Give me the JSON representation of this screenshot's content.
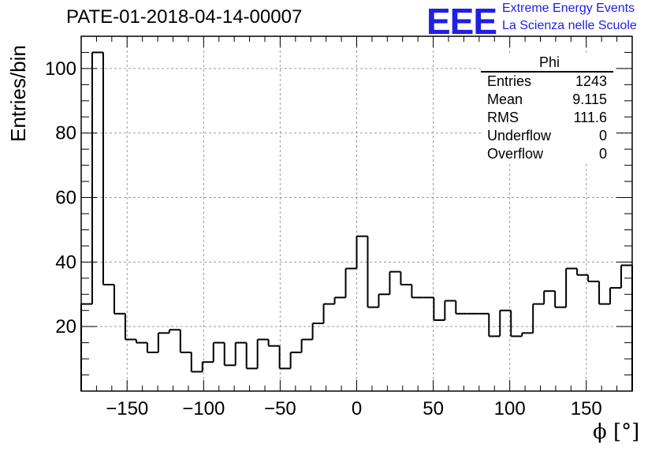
{
  "header": {
    "title": "PATE-01-2018-04-14-00007",
    "logo_text": "EEE",
    "logo_line1": "Extreme Energy Events",
    "logo_line2": "La Scienza nelle Scuole",
    "logo_color": "#1f1fe6"
  },
  "stats_box": {
    "name": "Phi",
    "rows": [
      {
        "label": "Entries",
        "value": "1243"
      },
      {
        "label": "Mean",
        "value": "9.115"
      },
      {
        "label": "RMS",
        "value": "111.6"
      },
      {
        "label": "Underflow",
        "value": "0"
      },
      {
        "label": "Overflow",
        "value": "0"
      }
    ]
  },
  "chart_data": {
    "type": "histogram",
    "title": "PATE-01-2018-04-14-00007",
    "xlabel": "ϕ [°]",
    "ylabel": "Entries/bin",
    "xlim": [
      -180,
      180
    ],
    "ylim": [
      0,
      110
    ],
    "bin_width": 7.2,
    "values": [
      27,
      105,
      33,
      24,
      16,
      15,
      12,
      18,
      19,
      12,
      6,
      9,
      15,
      8,
      15,
      7,
      16,
      14,
      7,
      12,
      16,
      21,
      27,
      29,
      38,
      48,
      26,
      30,
      37,
      33,
      29,
      29,
      22,
      28,
      24,
      24,
      24,
      17,
      25,
      17,
      18,
      27,
      31,
      26,
      38,
      36,
      34,
      27,
      32,
      39
    ],
    "x_ticks": [
      -150,
      -100,
      -50,
      0,
      50,
      100,
      150
    ],
    "x_tick_labels": [
      "−150",
      "−100",
      "−50",
      "0",
      "50",
      "100",
      "150"
    ],
    "y_ticks": [
      20,
      40,
      60,
      80,
      100
    ],
    "y_tick_labels": [
      "20",
      "40",
      "60",
      "80",
      "100"
    ],
    "grid": true,
    "line_color": "#000000"
  }
}
